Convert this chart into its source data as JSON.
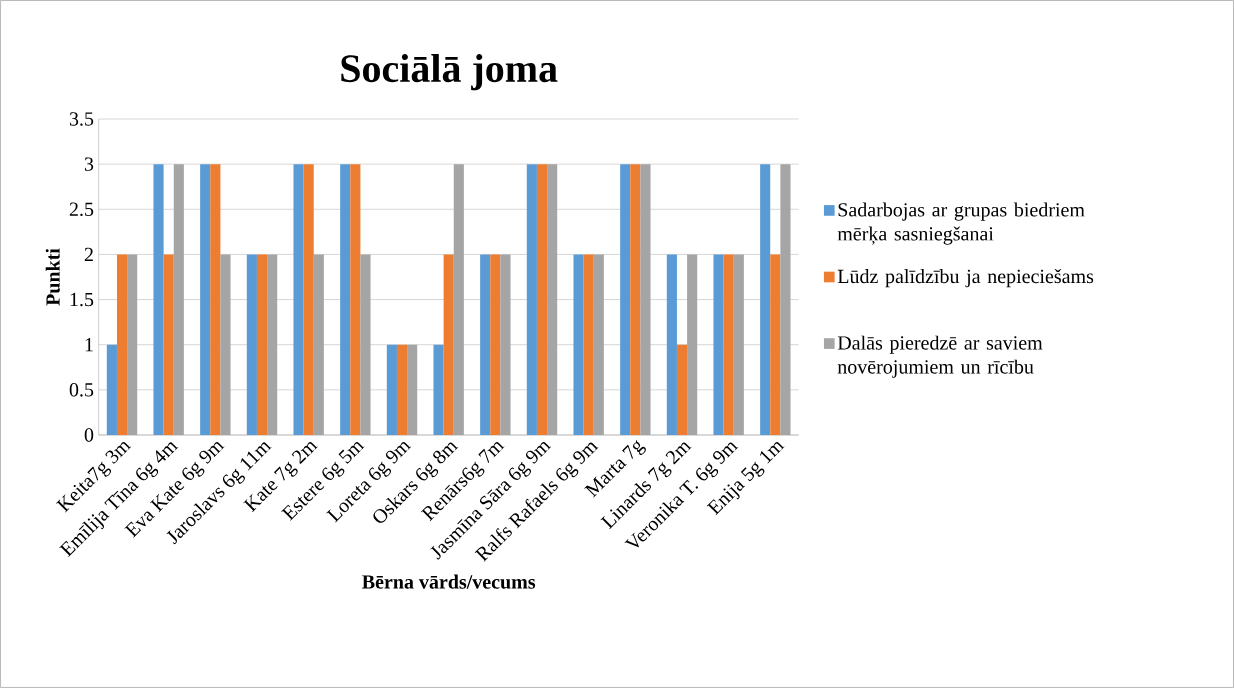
{
  "chart_data": {
    "type": "bar",
    "title": "Sociālā joma",
    "xlabel": "Bērna vārds/vecums",
    "ylabel": "Punkti",
    "categories": [
      "Keita7g 3m",
      "Emīlija Tīna 6g 4m",
      "Eva Kate 6g 9m",
      "Jaroslavs 6g 11m",
      "Kate 7g 2m",
      "Estere 6g 5m",
      "Loreta 6g 9m",
      "Oskars 6g 8m",
      "Renārs6g 7m",
      "Jasmīna Sāra 6g 9m",
      "Ralfs Rafaels 6g 9m",
      "Marta 7g",
      "Linards 7g 2m",
      "Veronika T. 6g 9m",
      "Enija 5g 1m"
    ],
    "series": [
      {
        "name": "Sadarbojas ar grupas biedriem mērķa sasniegšanai",
        "color": "#5b9bd5",
        "values": [
          1,
          3,
          3,
          2,
          3,
          3,
          1,
          1,
          2,
          3,
          2,
          3,
          2,
          2,
          3
        ]
      },
      {
        "name": "Lūdz palīdzību ja nepieciešams",
        "color": "#ed7d31",
        "values": [
          2,
          2,
          3,
          2,
          3,
          3,
          1,
          2,
          2,
          3,
          2,
          3,
          1,
          2,
          2
        ]
      },
      {
        "name": "Dalās pieredzē ar saviem novērojumiem un rīcību",
        "color": "#a5a5a5",
        "values": [
          2,
          3,
          2,
          2,
          2,
          2,
          1,
          3,
          2,
          3,
          2,
          3,
          2,
          2,
          3
        ]
      }
    ],
    "ylim": [
      0,
      3.5
    ],
    "yticks": [
      0,
      0.5,
      1,
      1.5,
      2,
      2.5,
      3,
      3.5
    ],
    "grid": "y",
    "legend": "right"
  }
}
